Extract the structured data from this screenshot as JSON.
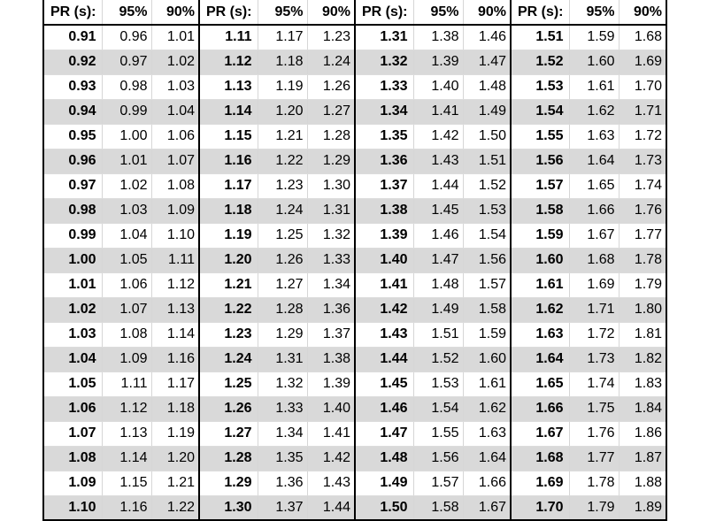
{
  "headers": [
    "PR (s):",
    "95%",
    "90%"
  ],
  "groups": [
    {
      "rows": [
        [
          "0.91",
          "0.96",
          "1.01"
        ],
        [
          "0.92",
          "0.97",
          "1.02"
        ],
        [
          "0.93",
          "0.98",
          "1.03"
        ],
        [
          "0.94",
          "0.99",
          "1.04"
        ],
        [
          "0.95",
          "1.00",
          "1.06"
        ],
        [
          "0.96",
          "1.01",
          "1.07"
        ],
        [
          "0.97",
          "1.02",
          "1.08"
        ],
        [
          "0.98",
          "1.03",
          "1.09"
        ],
        [
          "0.99",
          "1.04",
          "1.10"
        ],
        [
          "1.00",
          "1.05",
          "1.11"
        ],
        [
          "1.01",
          "1.06",
          "1.12"
        ],
        [
          "1.02",
          "1.07",
          "1.13"
        ],
        [
          "1.03",
          "1.08",
          "1.14"
        ],
        [
          "1.04",
          "1.09",
          "1.16"
        ],
        [
          "1.05",
          "1.11",
          "1.17"
        ],
        [
          "1.06",
          "1.12",
          "1.18"
        ],
        [
          "1.07",
          "1.13",
          "1.19"
        ],
        [
          "1.08",
          "1.14",
          "1.20"
        ],
        [
          "1.09",
          "1.15",
          "1.21"
        ],
        [
          "1.10",
          "1.16",
          "1.22"
        ]
      ]
    },
    {
      "rows": [
        [
          "1.11",
          "1.17",
          "1.23"
        ],
        [
          "1.12",
          "1.18",
          "1.24"
        ],
        [
          "1.13",
          "1.19",
          "1.26"
        ],
        [
          "1.14",
          "1.20",
          "1.27"
        ],
        [
          "1.15",
          "1.21",
          "1.28"
        ],
        [
          "1.16",
          "1.22",
          "1.29"
        ],
        [
          "1.17",
          "1.23",
          "1.30"
        ],
        [
          "1.18",
          "1.24",
          "1.31"
        ],
        [
          "1.19",
          "1.25",
          "1.32"
        ],
        [
          "1.20",
          "1.26",
          "1.33"
        ],
        [
          "1.21",
          "1.27",
          "1.34"
        ],
        [
          "1.22",
          "1.28",
          "1.36"
        ],
        [
          "1.23",
          "1.29",
          "1.37"
        ],
        [
          "1.24",
          "1.31",
          "1.38"
        ],
        [
          "1.25",
          "1.32",
          "1.39"
        ],
        [
          "1.26",
          "1.33",
          "1.40"
        ],
        [
          "1.27",
          "1.34",
          "1.41"
        ],
        [
          "1.28",
          "1.35",
          "1.42"
        ],
        [
          "1.29",
          "1.36",
          "1.43"
        ],
        [
          "1.30",
          "1.37",
          "1.44"
        ]
      ]
    },
    {
      "rows": [
        [
          "1.31",
          "1.38",
          "1.46"
        ],
        [
          "1.32",
          "1.39",
          "1.47"
        ],
        [
          "1.33",
          "1.40",
          "1.48"
        ],
        [
          "1.34",
          "1.41",
          "1.49"
        ],
        [
          "1.35",
          "1.42",
          "1.50"
        ],
        [
          "1.36",
          "1.43",
          "1.51"
        ],
        [
          "1.37",
          "1.44",
          "1.52"
        ],
        [
          "1.38",
          "1.45",
          "1.53"
        ],
        [
          "1.39",
          "1.46",
          "1.54"
        ],
        [
          "1.40",
          "1.47",
          "1.56"
        ],
        [
          "1.41",
          "1.48",
          "1.57"
        ],
        [
          "1.42",
          "1.49",
          "1.58"
        ],
        [
          "1.43",
          "1.51",
          "1.59"
        ],
        [
          "1.44",
          "1.52",
          "1.60"
        ],
        [
          "1.45",
          "1.53",
          "1.61"
        ],
        [
          "1.46",
          "1.54",
          "1.62"
        ],
        [
          "1.47",
          "1.55",
          "1.63"
        ],
        [
          "1.48",
          "1.56",
          "1.64"
        ],
        [
          "1.49",
          "1.57",
          "1.66"
        ],
        [
          "1.50",
          "1.58",
          "1.67"
        ]
      ]
    },
    {
      "rows": [
        [
          "1.51",
          "1.59",
          "1.68"
        ],
        [
          "1.52",
          "1.60",
          "1.69"
        ],
        [
          "1.53",
          "1.61",
          "1.70"
        ],
        [
          "1.54",
          "1.62",
          "1.71"
        ],
        [
          "1.55",
          "1.63",
          "1.72"
        ],
        [
          "1.56",
          "1.64",
          "1.73"
        ],
        [
          "1.57",
          "1.65",
          "1.74"
        ],
        [
          "1.58",
          "1.66",
          "1.76"
        ],
        [
          "1.59",
          "1.67",
          "1.77"
        ],
        [
          "1.60",
          "1.68",
          "1.78"
        ],
        [
          "1.61",
          "1.69",
          "1.79"
        ],
        [
          "1.62",
          "1.71",
          "1.80"
        ],
        [
          "1.63",
          "1.72",
          "1.81"
        ],
        [
          "1.64",
          "1.73",
          "1.82"
        ],
        [
          "1.65",
          "1.74",
          "1.83"
        ],
        [
          "1.66",
          "1.75",
          "1.84"
        ],
        [
          "1.67",
          "1.76",
          "1.86"
        ],
        [
          "1.68",
          "1.77",
          "1.87"
        ],
        [
          "1.69",
          "1.78",
          "1.88"
        ],
        [
          "1.70",
          "1.79",
          "1.89"
        ]
      ]
    }
  ],
  "colors": {
    "stripe": "#d9d9d9",
    "rule": "#000000",
    "grid": "#d6d6d6"
  }
}
